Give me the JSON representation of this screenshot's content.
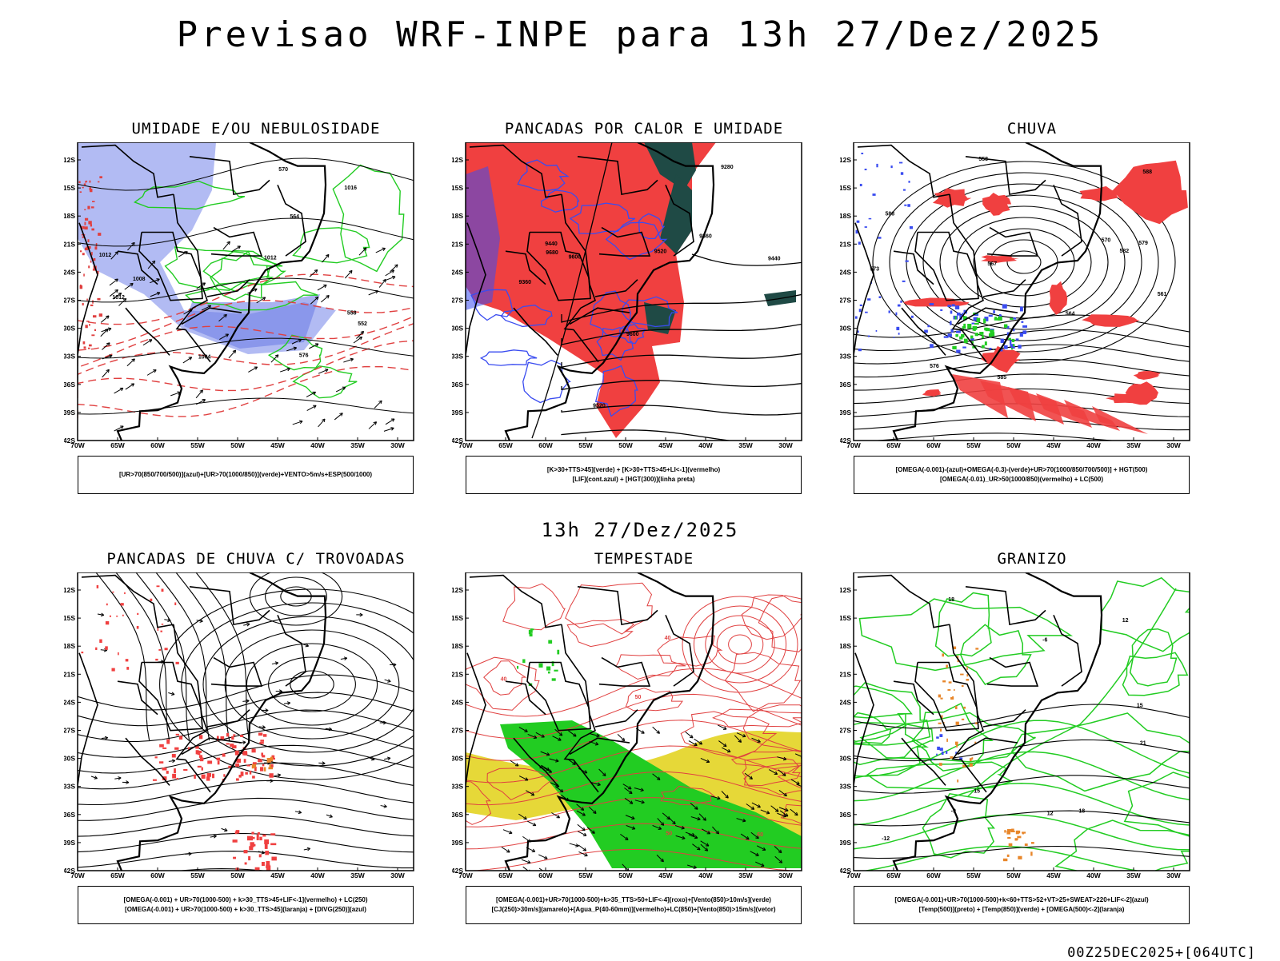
{
  "header": {
    "title": "Previsao WRF-INPE  para 13h 27/Dez/2025"
  },
  "middle": {
    "title": "13h 27/Dez/2025"
  },
  "footer": {
    "run": "00Z25DEC2025+[064UTC]"
  },
  "axes": {
    "lat_labels": [
      "12S",
      "15S",
      "18S",
      "21S",
      "24S",
      "27S",
      "30S",
      "33S",
      "36S",
      "39S",
      "42S"
    ],
    "lon_labels": [
      "70W",
      "65W",
      "60W",
      "55W",
      "50W",
      "45W",
      "40W",
      "35W",
      "30W"
    ]
  },
  "panels": [
    {
      "title": "UMIDADE E/OU NEBULOSIDADE",
      "legend": [
        "[UR>70(850/700/500)](azul)+[UR>70(1000/850)](verde)+VENTO>5m/s+ESP(500/1000)"
      ],
      "contour_labels": [
        "1012",
        "1012",
        "1012",
        "1016",
        "1008",
        "1004",
        "576",
        "570",
        "564",
        "558",
        "552"
      ]
    },
    {
      "title": "PANCADAS POR CALOR E UMIDADE",
      "legend": [
        "[K>30+TTS>45](verde) + [K>30+TTS>45+LI<-1](vermelho)",
        "[LIF](cont.azul) + [HGT(300)](linha preta)"
      ],
      "contour_labels": [
        "9600",
        "9520",
        "9440",
        "9360",
        "9280",
        "9680",
        "9600",
        "9520",
        "9440",
        "9360"
      ]
    },
    {
      "title": "CHUVA",
      "legend": [
        "[OMEGA(-0.001)-(azul)+OMEGA(-0.3)-(verde)+UR>70(1000/850/700/500)] + HGT(500)",
        "[OMEGA(-0.01)_UR>50(1000/850)(vermelho) + LC(500)"
      ],
      "contour_labels": [
        "588",
        "588",
        "585",
        "582",
        "579",
        "576",
        "573",
        "570",
        "567",
        "564",
        "561",
        "558"
      ]
    },
    {
      "title": "PANCADAS DE CHUVA C/ TROVOADAS",
      "legend": [
        "[OMEGA(-0.001) + UR>70(1000-500) + k>30_TTS>45+LIF<-1](vermelho) + LC(250)",
        "[OMEGA(-0.001) + UR>70(1000-500) + k>30_TTS>45](laranja) + [DIVG(250)](azul)"
      ],
      "contour_labels": []
    },
    {
      "title": "TEMPESTADE",
      "legend": [
        "[OMEGA(-0.001)+UR>70(1000-500)+k>35_TTS>50+LIF<-4](roxo)+[Vento(850)>10m/s](verde)",
        "[CJ(250)>30m/s](amarelo)+[Agua_P(40-60mm)](vermelho)+LC(850)+[Vento(850)>15m/s](vetor)"
      ],
      "contour_labels": [
        "40",
        "40",
        "50",
        "50",
        "60"
      ]
    },
    {
      "title": "GRANIZO",
      "legend": [
        "[OMEGA(-0.001)+UR>70(1000-500)+k<60+TTS>52+VT>25+SWEAT>220+LIF<-2](azul)",
        "[Temp(500)](preto) + [Temp(850)](verde) + [OMEGA(500)<-2](laranja)"
      ],
      "contour_labels": [
        "21",
        "18",
        "15",
        "12",
        "-9",
        "-6",
        "15",
        "12",
        "-12",
        "18"
      ]
    }
  ],
  "colors": {
    "humid_blue": "#aab4f2",
    "humid_green": "#22cc22",
    "hot_red": "#f04040",
    "dark_teal": "#1f4a45",
    "jet_yellow": "#e6d838",
    "contour_blue": "#3a4cf0",
    "contour_red": "#e04040",
    "streamline": "#000000",
    "orange": "#e8862a"
  }
}
